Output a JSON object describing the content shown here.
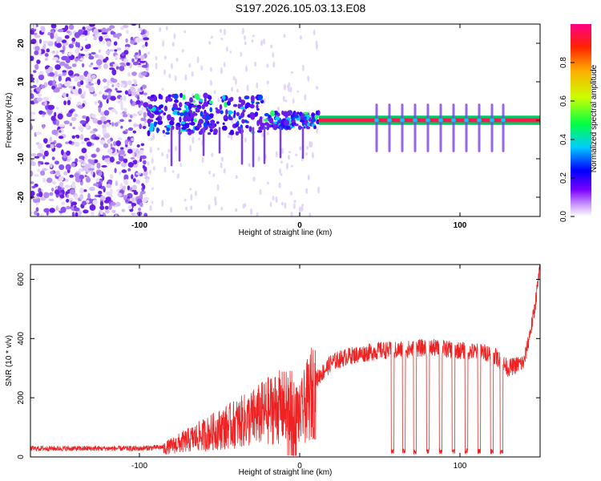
{
  "title": "S197.2026.105.03.13.E08",
  "chart_data": [
    {
      "type": "heatmap",
      "xlabel": "Height of straight line (km)",
      "ylabel": "Frequency (Hz)",
      "xlim": [
        -168,
        150
      ],
      "ylim": [
        -25,
        25
      ],
      "xticks": [
        -100,
        0,
        100
      ],
      "yticks": [
        -20,
        -10,
        0,
        10,
        20
      ],
      "colorbar": {
        "label": "Normalized spectral amplitude",
        "range": [
          0,
          1
        ],
        "ticks": [
          0.0,
          0.2,
          0.4,
          0.6,
          0.8
        ],
        "tick_labels": [
          "0.0",
          "0.2",
          "0.4",
          "0.6",
          "0.8"
        ],
        "colors": [
          "#ffffff",
          "#cc99ff",
          "#7700ff",
          "#0000ff",
          "#00ccff",
          "#00ff44",
          "#ccff00",
          "#ffaa00",
          "#ff2200",
          "#ff0088"
        ]
      },
      "regions": [
        {
          "name": "noise",
          "x": [
            -168,
            -95
          ],
          "amplitude": 0.15
        },
        {
          "name": "onset",
          "x": [
            -95,
            12
          ],
          "amplitude": 0.35
        },
        {
          "name": "carrier",
          "x": [
            12,
            150
          ],
          "frequency": 0,
          "amplitude": 0.9
        }
      ],
      "dropout_x": [
        48,
        56,
        64,
        72,
        80,
        88,
        96,
        104,
        112,
        120,
        127
      ]
    },
    {
      "type": "line",
      "xlabel": "Height of straight line (km)",
      "ylabel": "SNR (10 * v/v)",
      "xlim": [
        -168,
        150
      ],
      "ylim": [
        0,
        650
      ],
      "xticks": [
        -100,
        0,
        100
      ],
      "yticks": [
        0,
        200,
        400,
        600
      ],
      "color": "#ee2222",
      "series": [
        {
          "name": "SNR",
          "x": [
            -168,
            -100,
            -85,
            -70,
            -50,
            -30,
            -15,
            -5,
            0,
            10,
            20,
            30,
            40,
            50,
            60,
            80,
            100,
            120,
            130,
            140,
            146,
            150
          ],
          "values": [
            25,
            25,
            30,
            60,
            100,
            140,
            180,
            180,
            150,
            260,
            320,
            340,
            350,
            360,
            360,
            370,
            360,
            350,
            300,
            320,
            480,
            640
          ]
        }
      ],
      "dropout_x": [
        58,
        65,
        72,
        80,
        88,
        96,
        104,
        112,
        120,
        126
      ]
    }
  ]
}
